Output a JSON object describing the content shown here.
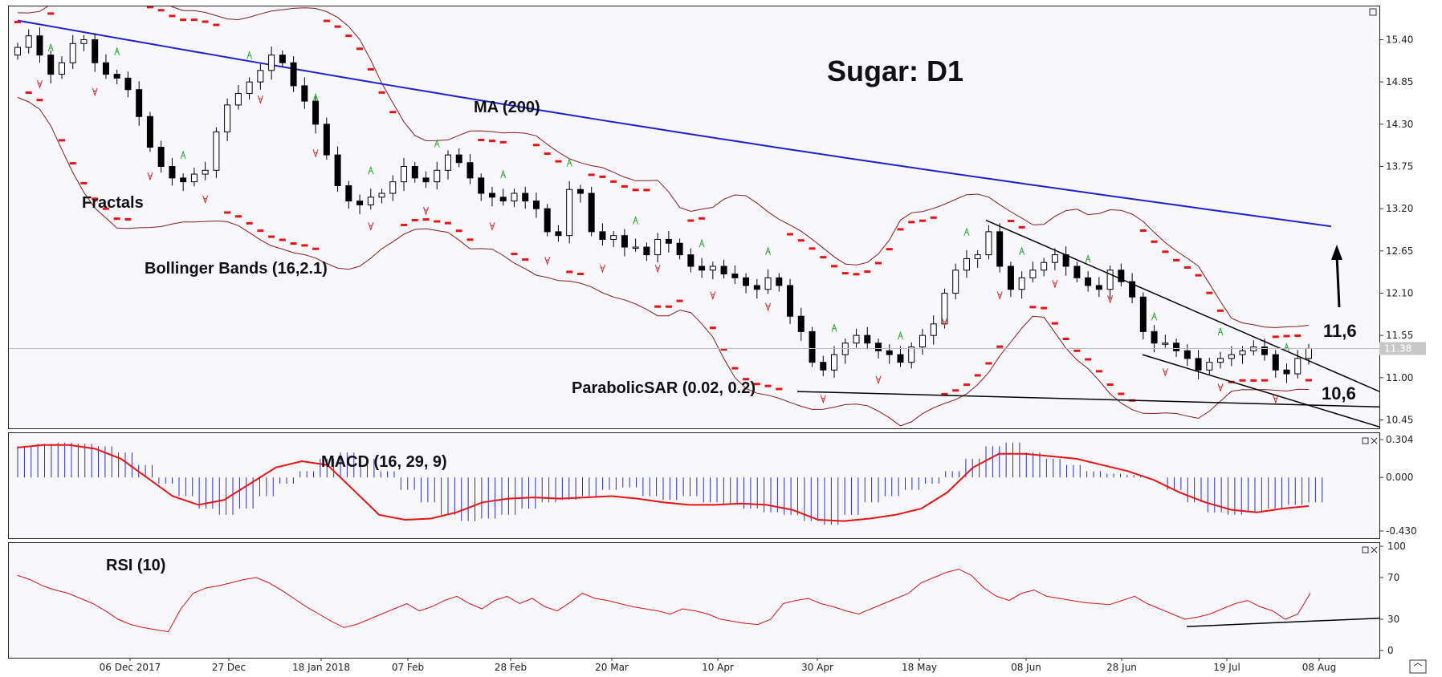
{
  "chart_data": {
    "type": "candlestick",
    "title": "Sugar: D1",
    "x_ticks": [
      "06 Dec 2017",
      "27 Dec",
      "18 Jan 2018",
      "07 Feb",
      "28 Feb",
      "20 Mar",
      "10 Apr",
      "30 Apr",
      "18 May",
      "08 Jun",
      "28 Jun",
      "19 Jul",
      "08 Aug"
    ],
    "price_axis": {
      "ticks": [
        "15.40",
        "14.85",
        "14.30",
        "13.75",
        "13.20",
        "12.65",
        "12.10",
        "11.55",
        "11.00",
        "10.45"
      ],
      "range": [
        10.4,
        15.8
      ],
      "current_price": "11.38"
    },
    "indicators": {
      "ma": "MA (200)",
      "fractals": "Fractals",
      "bollinger": "Bollinger Bands (16,2.1)",
      "sar": "ParabolicSAR (0.02, 0.2)",
      "macd": "MACD (16, 29, 9)",
      "rsi": "RSI (10)"
    },
    "annotations": {
      "resistance": "11,6",
      "support": "10,6"
    },
    "price_series": [
      15.3,
      15.45,
      15.2,
      14.95,
      15.1,
      15.35,
      15.4,
      15.1,
      14.95,
      14.9,
      14.75,
      14.4,
      14.0,
      13.75,
      13.6,
      13.55,
      13.65,
      13.7,
      14.2,
      14.55,
      14.7,
      14.85,
      15.0,
      15.2,
      15.1,
      14.8,
      14.6,
      14.3,
      13.9,
      13.5,
      13.3,
      13.25,
      13.35,
      13.4,
      13.55,
      13.75,
      13.6,
      13.55,
      13.7,
      13.9,
      13.8,
      13.6,
      13.4,
      13.35,
      13.3,
      13.4,
      13.3,
      13.2,
      12.9,
      12.85,
      13.45,
      13.4,
      12.9,
      12.8,
      12.85,
      12.7,
      12.7,
      12.6,
      12.8,
      12.75,
      12.6,
      12.45,
      12.4,
      12.45,
      12.35,
      12.3,
      12.2,
      12.15,
      12.3,
      12.2,
      11.8,
      11.6,
      11.2,
      11.1,
      11.3,
      11.45,
      11.55,
      11.45,
      11.35,
      11.3,
      11.2,
      11.4,
      11.55,
      11.7,
      12.1,
      12.4,
      12.55,
      12.6,
      12.9,
      12.45,
      12.15,
      12.3,
      12.4,
      12.5,
      12.6,
      12.45,
      12.3,
      12.2,
      12.15,
      12.4,
      12.25,
      12.05,
      11.6,
      11.45,
      11.45,
      11.35,
      11.25,
      11.1,
      11.2,
      11.25,
      11.3,
      11.35,
      11.4,
      11.3,
      11.1,
      11.05,
      11.25,
      11.38
    ],
    "ma200_endpoints": [
      15.65,
      12.97
    ],
    "fractal_up_count": 20,
    "fractal_down_count": 23,
    "macd_axis": {
      "ticks": [
        "0.304",
        "0.000",
        "-0.430"
      ],
      "range": [
        -0.43,
        0.304
      ]
    },
    "macd_hist": [
      0.25,
      0.27,
      0.28,
      0.27,
      0.25,
      0.2,
      0.1,
      -0.05,
      -0.15,
      -0.25,
      -0.3,
      -0.25,
      -0.15,
      -0.05,
      0.05,
      0.15,
      0.2,
      0.15,
      0.05,
      -0.1,
      -0.2,
      -0.3,
      -0.35,
      -0.33,
      -0.3,
      -0.25,
      -0.2,
      -0.18,
      -0.15,
      -0.1,
      -0.08,
      -0.15,
      -0.18,
      -0.15,
      -0.2,
      -0.22,
      -0.25,
      -0.28,
      -0.3,
      -0.35,
      -0.38,
      -0.3,
      -0.2,
      -0.15,
      -0.1,
      -0.05,
      0.05,
      0.15,
      0.25,
      0.28,
      0.2,
      0.15,
      0.1,
      0.05,
      0.03,
      0.02,
      0.0,
      -0.1,
      -0.2,
      -0.28,
      -0.3,
      -0.28,
      -0.25,
      -0.22,
      -0.2
    ],
    "macd_signal": [
      0.24,
      0.26,
      0.26,
      0.23,
      0.15,
      0.0,
      -0.15,
      -0.22,
      -0.18,
      -0.05,
      0.08,
      0.13,
      0.1,
      -0.1,
      -0.3,
      -0.34,
      -0.33,
      -0.28,
      -0.2,
      -0.17,
      -0.16,
      -0.17,
      -0.16,
      -0.15,
      -0.17,
      -0.2,
      -0.22,
      -0.22,
      -0.21,
      -0.22,
      -0.26,
      -0.34,
      -0.35,
      -0.33,
      -0.3,
      -0.25,
      -0.12,
      0.08,
      0.19,
      0.19,
      0.17,
      0.15,
      0.1,
      0.05,
      -0.02,
      -0.12,
      -0.2,
      -0.26,
      -0.28,
      -0.25,
      -0.23
    ],
    "rsi_axis": {
      "ticks": [
        "100",
        "70",
        "30",
        "0"
      ],
      "range": [
        0,
        100
      ]
    },
    "rsi_series": [
      72,
      68,
      62,
      58,
      55,
      50,
      45,
      38,
      30,
      25,
      22,
      20,
      18,
      40,
      55,
      60,
      62,
      65,
      68,
      70,
      65,
      58,
      50,
      42,
      35,
      28,
      22,
      25,
      30,
      35,
      40,
      45,
      38,
      42,
      48,
      52,
      45,
      40,
      48,
      52,
      45,
      50,
      42,
      38,
      46,
      55,
      50,
      48,
      45,
      42,
      40,
      38,
      35,
      40,
      38,
      35,
      30,
      28,
      26,
      25,
      30,
      45,
      48,
      50,
      45,
      42,
      38,
      35,
      40,
      45,
      50,
      55,
      65,
      70,
      75,
      78,
      72,
      60,
      52,
      48,
      55,
      58,
      52,
      50,
      48,
      46,
      45,
      44,
      48,
      52,
      45,
      40,
      35,
      30,
      32,
      35,
      40,
      45,
      48,
      42,
      38,
      30,
      35,
      55
    ]
  }
}
